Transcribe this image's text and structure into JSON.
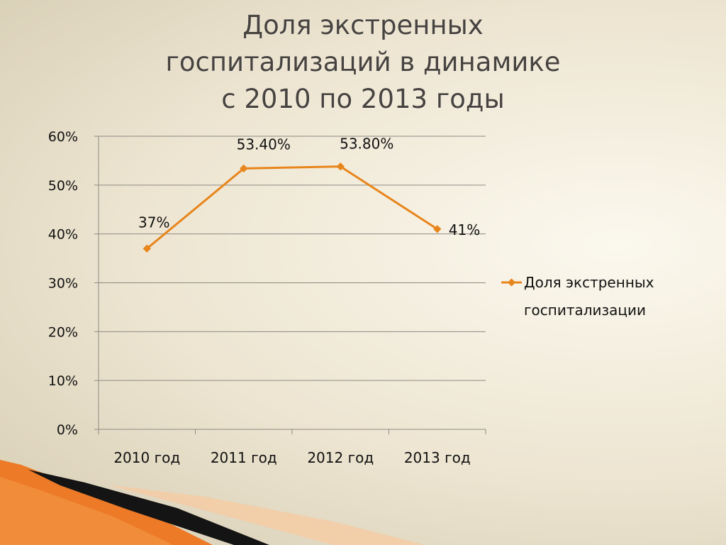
{
  "title_lines": [
    "Доля экстренных",
    "госпитализаций в динамике",
    "с 2010 по 2013 годы"
  ],
  "chart_data": {
    "type": "line",
    "categories": [
      "2010 год",
      "2011 год",
      "2012 год",
      "2013 год"
    ],
    "series": [
      {
        "name": "Доля экстренных госпитализации",
        "values": [
          37,
          53.4,
          53.8,
          41
        ],
        "data_labels": [
          "37%",
          "53.40%",
          "53.80%",
          "41%"
        ],
        "color": "#e8851c"
      }
    ],
    "y_ticks": [
      "0%",
      "10%",
      "20%",
      "30%",
      "40%",
      "50%",
      "60%"
    ],
    "ylim": [
      0,
      60
    ],
    "y_step": 10,
    "grid": true,
    "legend_position": "right",
    "legend_lines": [
      "Доля экстренных",
      "госпитализации"
    ]
  },
  "colors": {
    "line": "#e8851c",
    "gridline": "#8e8a84",
    "title": "#474340",
    "decor_orange": "#ec7a26",
    "decor_dark": "#141414",
    "decor_peach": "#f4cba4"
  }
}
